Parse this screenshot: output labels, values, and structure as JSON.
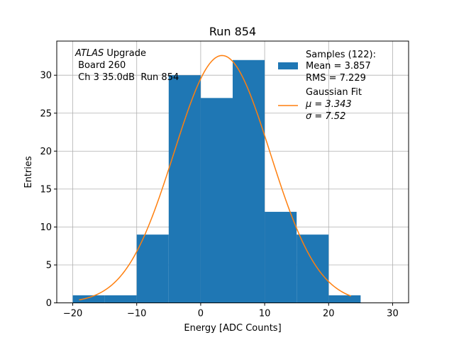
{
  "chart_data": {
    "type": "histogram",
    "title": "Run 854",
    "xlabel": "Energy [ADC Counts]",
    "ylabel": "Entries",
    "xlim": [
      -22.5,
      32.5
    ],
    "ylim": [
      0,
      34.5
    ],
    "xticks": [
      -20,
      -10,
      0,
      10,
      20,
      30
    ],
    "xtick_labels": [
      "−20",
      "−10",
      "0",
      "10",
      "20",
      "30"
    ],
    "yticks": [
      0,
      5,
      10,
      15,
      20,
      25,
      30
    ],
    "ytick_labels": [
      "0",
      "5",
      "10",
      "15",
      "20",
      "25",
      "30"
    ],
    "grid": true,
    "bin_edges": [
      -20,
      -15,
      -10,
      -5,
      0,
      5,
      10,
      15,
      20,
      25
    ],
    "values": [
      1,
      1,
      9,
      30,
      27,
      32,
      12,
      9,
      1
    ],
    "fit": {
      "name": "Gaussian Fit",
      "mu": 3.343,
      "sigma": 7.52,
      "amplitude": 32.6,
      "x_range": [
        -19,
        23.5
      ]
    },
    "colors": {
      "bars": "#1f77b4",
      "fit": "#ff7f0e",
      "grid": "#b0b0b0"
    },
    "annotation": {
      "line1_italic": "ATLAS",
      "line1_rest": " Upgrade",
      "line2": " Board 260",
      "line3": " Ch 3 35.0dB  Run 854"
    },
    "legend": {
      "location": "top-right",
      "samples_title": "Samples (122):",
      "samples_mean": "Mean = 3.857",
      "samples_rms": "RMS = 7.229",
      "fit_title": "Gaussian Fit",
      "fit_mu": "μ = 3.343",
      "fit_sigma": "σ = 7.52"
    }
  }
}
